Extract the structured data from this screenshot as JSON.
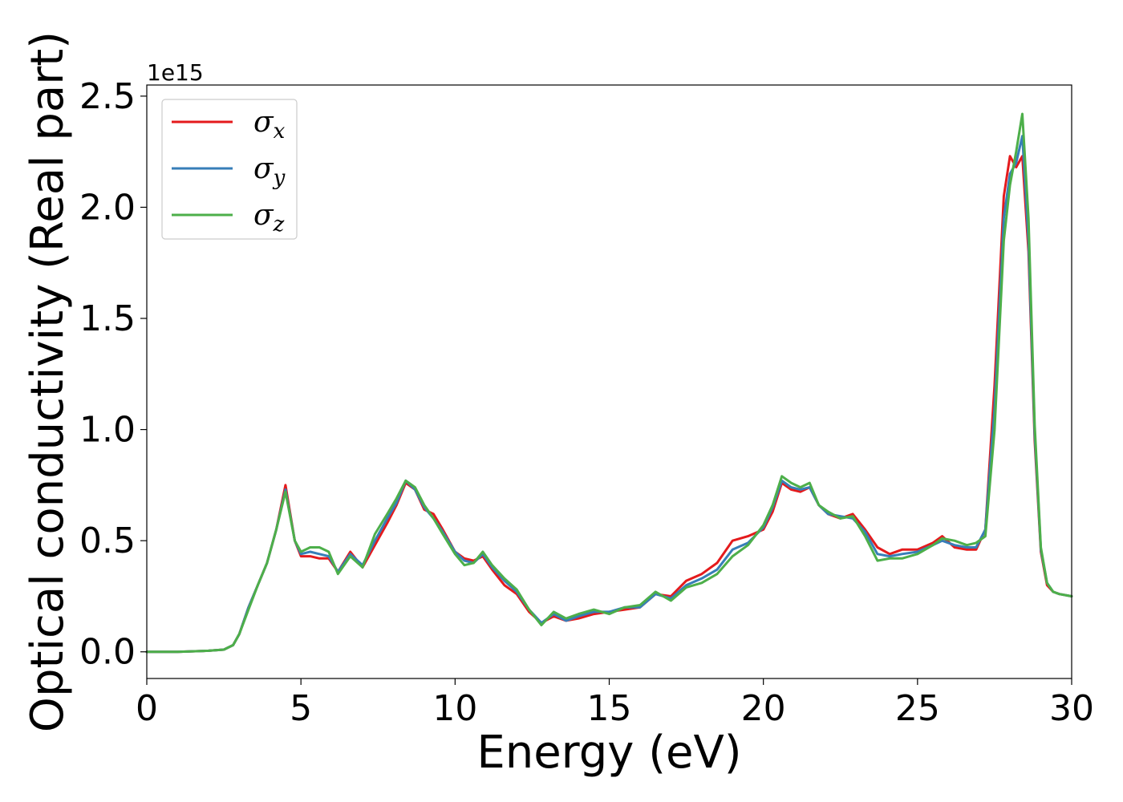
{
  "chart_data": {
    "type": "line",
    "title": "",
    "xlabel": "Energy (eV)",
    "ylabel": "Optical conductivity (Real part)",
    "y_offset_text": "1e15",
    "y_multiplier": 1000000000000000.0,
    "xlim": [
      0,
      30
    ],
    "ylim": [
      -0.12,
      2.55
    ],
    "xticks": [
      0,
      5,
      10,
      15,
      20,
      25,
      30
    ],
    "xtick_labels": [
      "0",
      "5",
      "10",
      "15",
      "20",
      "25",
      "30"
    ],
    "yticks": [
      0.0,
      0.5,
      1.0,
      1.5,
      2.0,
      2.5
    ],
    "ytick_labels": [
      "0.0",
      "0.5",
      "1.0",
      "1.5",
      "2.0",
      "2.5"
    ],
    "grid": false,
    "legend_position": "top-left",
    "x": [
      0,
      1,
      2,
      2.5,
      2.8,
      3.0,
      3.3,
      3.6,
      3.9,
      4.2,
      4.5,
      4.8,
      5.0,
      5.3,
      5.6,
      5.9,
      6.2,
      6.6,
      7.0,
      7.4,
      7.8,
      8.1,
      8.4,
      8.7,
      9.0,
      9.3,
      9.6,
      10.0,
      10.3,
      10.6,
      10.9,
      11.2,
      11.6,
      12.0,
      12.4,
      12.8,
      13.2,
      13.6,
      14.0,
      14.5,
      15.0,
      15.5,
      16.0,
      16.5,
      17.0,
      17.5,
      18.0,
      18.5,
      19.0,
      19.5,
      20.0,
      20.3,
      20.6,
      20.9,
      21.2,
      21.5,
      21.8,
      22.1,
      22.5,
      22.9,
      23.3,
      23.7,
      24.1,
      24.5,
      25.0,
      25.5,
      25.8,
      26.2,
      26.6,
      26.9,
      27.2,
      27.5,
      27.8,
      28.0,
      28.2,
      28.4,
      28.6,
      28.8,
      29.0,
      29.2,
      29.4,
      29.6,
      30.0
    ],
    "series": [
      {
        "name": "σx",
        "color": "#e41a1c",
        "values": [
          0.0,
          0.0,
          0.005,
          0.01,
          0.03,
          0.08,
          0.2,
          0.3,
          0.4,
          0.55,
          0.75,
          0.5,
          0.43,
          0.43,
          0.42,
          0.42,
          0.36,
          0.45,
          0.38,
          0.48,
          0.58,
          0.66,
          0.76,
          0.73,
          0.64,
          0.62,
          0.55,
          0.45,
          0.42,
          0.41,
          0.43,
          0.37,
          0.3,
          0.26,
          0.18,
          0.13,
          0.16,
          0.14,
          0.15,
          0.17,
          0.18,
          0.19,
          0.2,
          0.26,
          0.25,
          0.32,
          0.35,
          0.4,
          0.5,
          0.52,
          0.55,
          0.63,
          0.76,
          0.73,
          0.72,
          0.74,
          0.66,
          0.62,
          0.6,
          0.62,
          0.55,
          0.47,
          0.44,
          0.46,
          0.46,
          0.49,
          0.52,
          0.47,
          0.46,
          0.46,
          0.55,
          1.2,
          2.05,
          2.23,
          2.18,
          2.23,
          1.8,
          0.95,
          0.45,
          0.3,
          0.27,
          0.26,
          0.25
        ]
      },
      {
        "name": "σy",
        "color": "#377eb8",
        "values": [
          0.0,
          0.0,
          0.005,
          0.01,
          0.03,
          0.08,
          0.2,
          0.3,
          0.4,
          0.55,
          0.73,
          0.5,
          0.44,
          0.45,
          0.44,
          0.43,
          0.36,
          0.44,
          0.39,
          0.5,
          0.6,
          0.67,
          0.77,
          0.73,
          0.65,
          0.6,
          0.54,
          0.45,
          0.41,
          0.4,
          0.44,
          0.38,
          0.32,
          0.27,
          0.19,
          0.13,
          0.17,
          0.14,
          0.16,
          0.18,
          0.18,
          0.2,
          0.2,
          0.26,
          0.24,
          0.3,
          0.33,
          0.37,
          0.46,
          0.49,
          0.56,
          0.65,
          0.77,
          0.74,
          0.73,
          0.74,
          0.66,
          0.62,
          0.61,
          0.6,
          0.54,
          0.44,
          0.43,
          0.44,
          0.45,
          0.48,
          0.5,
          0.48,
          0.47,
          0.47,
          0.55,
          1.1,
          1.95,
          2.15,
          2.2,
          2.32,
          1.85,
          0.98,
          0.46,
          0.31,
          0.27,
          0.26,
          0.25
        ]
      },
      {
        "name": "σz",
        "color": "#4daf4a",
        "values": [
          0.0,
          0.0,
          0.005,
          0.01,
          0.03,
          0.08,
          0.19,
          0.3,
          0.4,
          0.55,
          0.72,
          0.5,
          0.45,
          0.47,
          0.47,
          0.45,
          0.35,
          0.43,
          0.38,
          0.53,
          0.62,
          0.69,
          0.77,
          0.74,
          0.66,
          0.6,
          0.53,
          0.44,
          0.39,
          0.4,
          0.45,
          0.39,
          0.33,
          0.28,
          0.19,
          0.12,
          0.18,
          0.15,
          0.17,
          0.19,
          0.17,
          0.2,
          0.21,
          0.27,
          0.23,
          0.29,
          0.31,
          0.35,
          0.43,
          0.48,
          0.57,
          0.66,
          0.79,
          0.76,
          0.74,
          0.76,
          0.66,
          0.63,
          0.6,
          0.61,
          0.52,
          0.41,
          0.42,
          0.42,
          0.44,
          0.48,
          0.51,
          0.5,
          0.48,
          0.49,
          0.52,
          1.0,
          1.85,
          2.1,
          2.25,
          2.42,
          1.95,
          1.02,
          0.47,
          0.31,
          0.27,
          0.26,
          0.25
        ]
      }
    ]
  },
  "legend": {
    "items": [
      {
        "symbol": "σ",
        "subscript": "x",
        "color": "#e41a1c"
      },
      {
        "symbol": "σ",
        "subscript": "y",
        "color": "#377eb8"
      },
      {
        "symbol": "σ",
        "subscript": "z",
        "color": "#4daf4a"
      }
    ]
  }
}
